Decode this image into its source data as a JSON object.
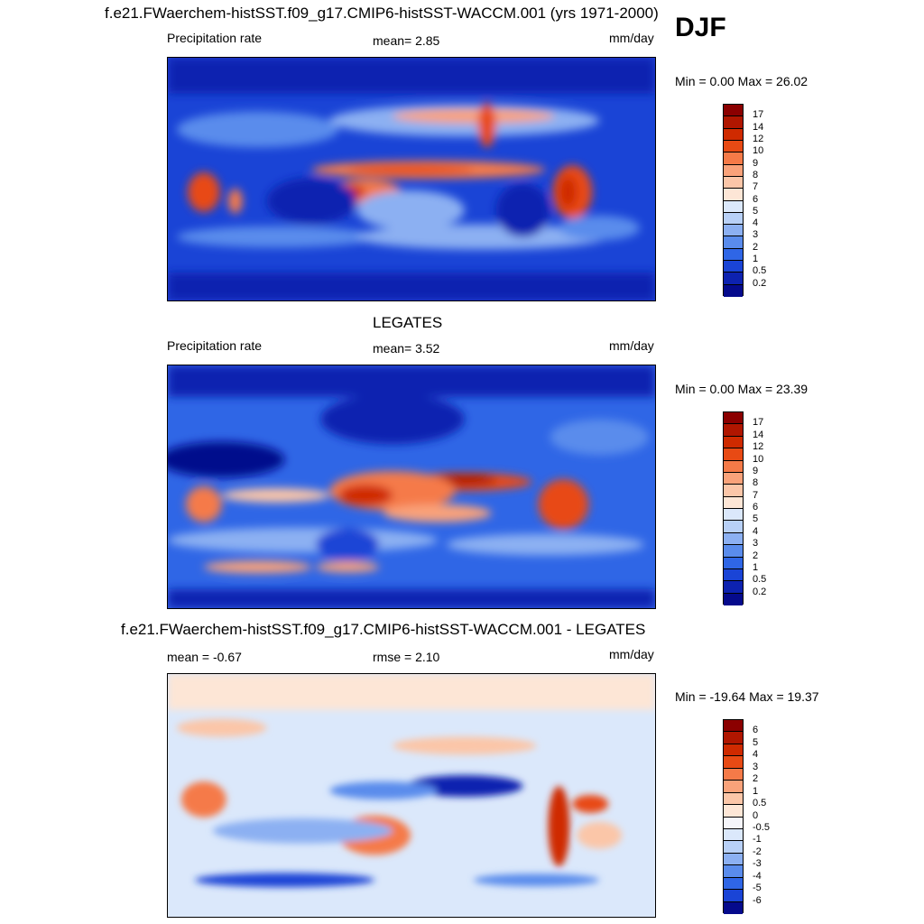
{
  "season": "DJF",
  "panels": [
    {
      "title": "f.e21.FWaerchem-histSST.f09_g17.CMIP6-histSST-WACCM.001 (yrs 1971-2000)",
      "left_label": "Precipitation rate",
      "center_label": "mean=   2.85",
      "right_label": "mm/day",
      "minmax": "Min =   0.00 Max =  26.02"
    },
    {
      "title": "LEGATES",
      "left_label": "Precipitation rate",
      "center_label": "mean=   3.52",
      "right_label": "mm/day",
      "minmax": "Min =   0.00 Max =  23.39"
    },
    {
      "title": "f.e21.FWaerchem-histSST.f09_g17.CMIP6-histSST-WACCM.001 - LEGATES",
      "left_label": "mean =  -0.67",
      "center_label": "rmse =   2.10",
      "right_label": "mm/day",
      "minmax": "Min = -19.64 Max =  19.37"
    }
  ],
  "chart_data": [
    {
      "type": "heatmap",
      "title": "f.e21.FWaerchem-histSST.f09_g17.CMIP6-histSST-WACCM.001 (yrs 1971-2000)",
      "variable": "Precipitation rate",
      "units": "mm/day",
      "mean": 2.85,
      "min": 0.0,
      "max": 26.02,
      "colorbar_levels": [
        "17",
        "14",
        "12",
        "10",
        "9",
        "8",
        "7",
        "6",
        "5",
        "4",
        "3",
        "2",
        "1",
        "0.5",
        "0.2"
      ],
      "colorbar_colors": [
        "#8b0000",
        "#b01600",
        "#cf2a00",
        "#e84a14",
        "#f57a48",
        "#f9a27a",
        "#fbc6a8",
        "#fde6d6",
        "#dbe8fb",
        "#b8d0f7",
        "#8cb0f2",
        "#5a8cec",
        "#2f66e6",
        "#1a44d6",
        "#0d22b0",
        "#050a8c"
      ]
    },
    {
      "type": "heatmap",
      "title": "LEGATES",
      "variable": "Precipitation rate",
      "units": "mm/day",
      "mean": 3.52,
      "min": 0.0,
      "max": 23.39,
      "colorbar_levels": [
        "17",
        "14",
        "12",
        "10",
        "9",
        "8",
        "7",
        "6",
        "5",
        "4",
        "3",
        "2",
        "1",
        "0.5",
        "0.2"
      ],
      "colorbar_colors": [
        "#8b0000",
        "#b01600",
        "#cf2a00",
        "#e84a14",
        "#f57a48",
        "#f9a27a",
        "#fbc6a8",
        "#fde6d6",
        "#dbe8fb",
        "#b8d0f7",
        "#8cb0f2",
        "#5a8cec",
        "#2f66e6",
        "#1a44d6",
        "#0d22b0",
        "#050a8c"
      ]
    },
    {
      "type": "heatmap",
      "title": "f.e21.FWaerchem-histSST.f09_g17.CMIP6-histSST-WACCM.001 - LEGATES",
      "units": "mm/day",
      "mean": -0.67,
      "rmse": 2.1,
      "min": -19.64,
      "max": 19.37,
      "colorbar_levels": [
        "6",
        "5",
        "4",
        "3",
        "2",
        "1",
        "0.5",
        "0",
        "-0.5",
        "-1",
        "-2",
        "-3",
        "-4",
        "-5",
        "-6"
      ],
      "colorbar_colors": [
        "#8b0000",
        "#b01600",
        "#cf2a00",
        "#e84a14",
        "#f57a48",
        "#f9a27a",
        "#fbc6a8",
        "#fde6d6",
        "#f5f5fa",
        "#dbe8fb",
        "#b8d0f7",
        "#8cb0f2",
        "#5a8cec",
        "#2f66e6",
        "#1a44d6",
        "#050a8c"
      ]
    }
  ]
}
